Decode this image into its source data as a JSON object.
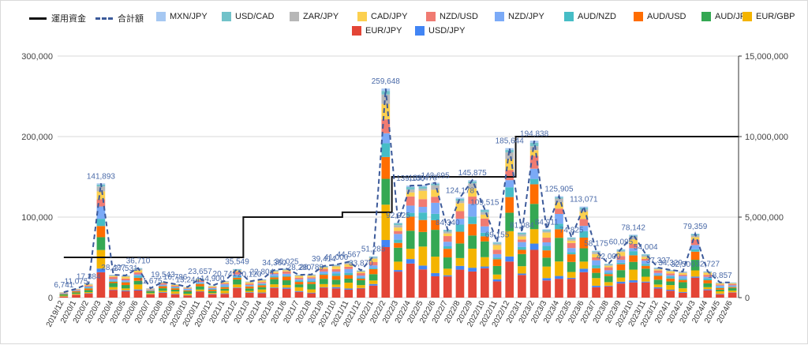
{
  "chart_data": {
    "type": "bar",
    "stacked": true,
    "legend_position": "top",
    "grid": true,
    "y_left": {
      "range": [
        0,
        300000
      ],
      "ticks": [
        "0",
        "100,000",
        "200,000",
        "300,000"
      ]
    },
    "y_right": {
      "range": [
        0,
        15000000
      ],
      "ticks": [
        "0",
        "5,000,000",
        "10,000,000",
        "15,000,000"
      ]
    },
    "categories": [
      "2019/12",
      "2020/1",
      "2020/2",
      "2020/3",
      "2020/4",
      "2020/5",
      "2020/6",
      "2020/7",
      "2020/8",
      "2020/9",
      "2020/10",
      "2020/11",
      "2020/12",
      "2021/1",
      "2021/2",
      "2021/3",
      "2021/4",
      "2021/5",
      "2021/6",
      "2021/7",
      "2021/8",
      "2021/9",
      "2021/10",
      "2021/11",
      "2021/12",
      "2022/1",
      "2022/2",
      "2022/3",
      "2022/4",
      "2022/5",
      "2022/6",
      "2022/7",
      "2022/8",
      "2022/9",
      "2022/10",
      "2022/11",
      "2022/12",
      "2023/1",
      "2023/2",
      "2023/3",
      "2023/4",
      "2023/5",
      "2023/6",
      "2023/7",
      "2023/8",
      "2023/9",
      "2023/10",
      "2023/11",
      "2023/12",
      "2024/1",
      "2024/2",
      "2024/3",
      "2024/4",
      "2024/5",
      "2024/6"
    ],
    "totals": [
      6741,
      11075,
      17384,
      141893,
      28427,
      27531,
      36710,
      11675,
      19543,
      16786,
      13244,
      23657,
      14900,
      20741,
      35549,
      20120,
      22804,
      34360,
      36025,
      28280,
      28789,
      39414,
      41000,
      44567,
      33870,
      51285,
      259648,
      92925,
      139100,
      139478,
      142695,
      84340,
      124178,
      145875,
      109515,
      69155,
      185644,
      81084,
      194838,
      84911,
      125905,
      74825,
      113071,
      58175,
      42000,
      60095,
      78142,
      54004,
      37327,
      34329,
      32500,
      79359,
      32727,
      18857,
      18857
    ],
    "total_labels": [
      "6,741",
      "11,075",
      "17,384",
      "141,893",
      "28,427",
      "27,531",
      "36,710",
      "11,675",
      "19,543",
      "16,786",
      "13,244",
      "23,657",
      "14,900",
      "20,741",
      "35,549",
      "20,120",
      "22,804",
      "34,360",
      "36,025",
      "28,280",
      "28,789",
      "39,414",
      "41,000",
      "44,567",
      "33,870",
      "51,285",
      "259,648",
      "92,925",
      "139,100",
      "139,478",
      "142,695",
      "84,340",
      "124,178",
      "145,875",
      "109,515",
      "69,155",
      "185,644",
      "81,084",
      "194,838",
      "84,911",
      "125,905",
      "74,825",
      "113,071",
      "58,175",
      "42,000",
      "60,095",
      "78,142",
      "54,004",
      "37,327",
      "34,329",
      "32,500",
      "79,359",
      "32,727",
      "18,857",
      ""
    ],
    "capital": [
      2500000,
      2500000,
      2500000,
      2500000,
      2500000,
      2500000,
      2500000,
      2500000,
      2500000,
      2500000,
      2500000,
      2500000,
      2500000,
      2500000,
      2500000,
      5000000,
      5000000,
      5000000,
      5000000,
      5000000,
      5000000,
      5000000,
      5000000,
      5300000,
      5300000,
      5300000,
      5300000,
      7500000,
      7500000,
      7500000,
      7500000,
      7500000,
      7500000,
      7500000,
      7500000,
      7500000,
      7500000,
      10000000,
      10000000,
      10000000,
      10000000,
      10000000,
      10000000,
      10000000,
      10000000,
      10000000,
      10000000,
      10000000,
      10000000,
      10000000,
      10000000,
      10000000,
      10000000,
      10000000,
      10000000
    ],
    "series": [
      {
        "name": "EUR/JPY",
        "color": "#e34536",
        "share": 0.28
      },
      {
        "name": "USD/JPY",
        "color": "#4285f4",
        "share": 0.03
      },
      {
        "name": "EUR/GBP",
        "color": "#f4b400",
        "share": 0.12
      },
      {
        "name": "AUD/JPY",
        "color": "#34a853",
        "share": 0.16
      },
      {
        "name": "AUD/USD",
        "color": "#ff6d01",
        "share": 0.1
      },
      {
        "name": "AUD/NZD",
        "color": "#46bdc6",
        "share": 0.05
      },
      {
        "name": "NZD/JPY",
        "color": "#7baaf7",
        "share": 0.07
      },
      {
        "name": "NZD/USD",
        "color": "#f07b72",
        "share": 0.07
      },
      {
        "name": "CAD/JPY",
        "color": "#fcd04f",
        "share": 0.06
      },
      {
        "name": "ZAR/JPY",
        "color": "#b7b7b7",
        "share": 0.03
      },
      {
        "name": "USD/CAD",
        "color": "#71c2c9",
        "share": 0.02
      },
      {
        "name": "MXN/JPY",
        "color": "#a6c8f2",
        "share": 0.01
      }
    ],
    "lines": [
      {
        "name": "運用資金",
        "color": "#111111",
        "axis": "right"
      },
      {
        "name": "合計額",
        "color": "#3c5a9a",
        "axis": "left",
        "dashed": true
      }
    ]
  },
  "legend": [
    {
      "label": "運用資金",
      "kind": "line",
      "color": "#111111"
    },
    {
      "label": "合計額",
      "kind": "dash",
      "color": "#3c5a9a"
    },
    {
      "label": "MXN/JPY",
      "kind": "box",
      "color": "#a6c8f2"
    },
    {
      "label": "USD/CAD",
      "kind": "box",
      "color": "#71c2c9"
    },
    {
      "label": "ZAR/JPY",
      "kind": "box",
      "color": "#b7b7b7"
    },
    {
      "label": "CAD/JPY",
      "kind": "box",
      "color": "#fcd04f"
    },
    {
      "label": "NZD/USD",
      "kind": "box",
      "color": "#f07b72"
    },
    {
      "label": "NZD/JPY",
      "kind": "box",
      "color": "#7baaf7"
    },
    {
      "label": "AUD/NZD",
      "kind": "box",
      "color": "#46bdc6"
    },
    {
      "label": "AUD/USD",
      "kind": "box",
      "color": "#ff6d01"
    },
    {
      "label": "AUD/JPY",
      "kind": "box",
      "color": "#34a853"
    },
    {
      "label": "EUR/GBP",
      "kind": "box",
      "color": "#f4b400"
    },
    {
      "label": "EUR/JPY",
      "kind": "box",
      "color": "#e34536"
    },
    {
      "label": "USD/JPY",
      "kind": "box",
      "color": "#4285f4"
    }
  ]
}
